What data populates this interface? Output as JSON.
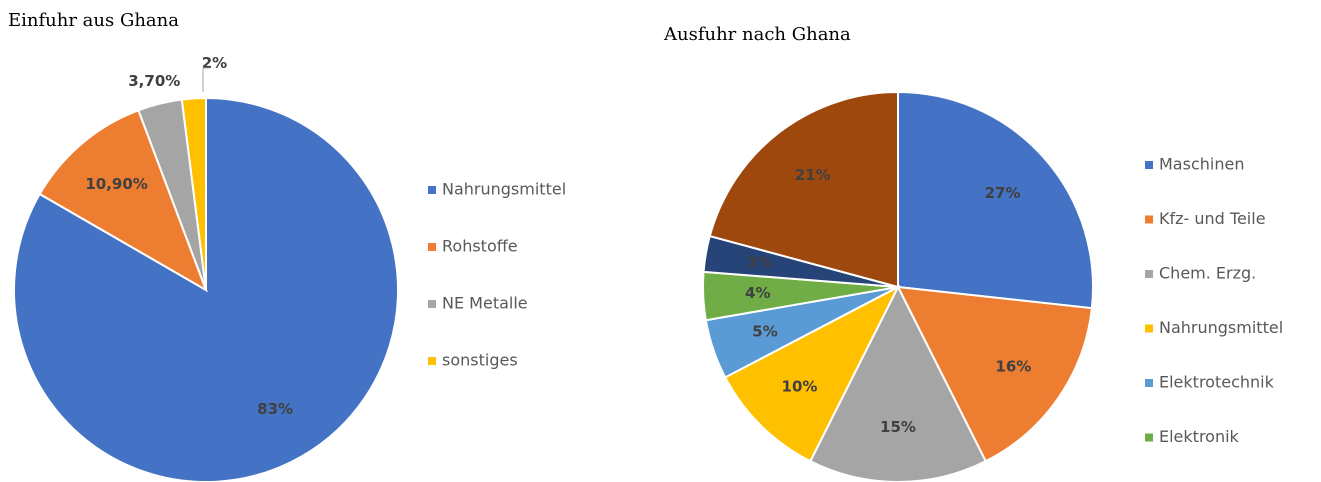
{
  "chart_data": [
    {
      "type": "pie",
      "title": "Einfuhr aus Ghana",
      "categories": [
        "Nahrungsmittel",
        "Rohstoffe",
        "NE Metalle",
        "sonstiges"
      ],
      "values": [
        83,
        10.9,
        3.7,
        2
      ],
      "value_labels": [
        "83%",
        "10,90%",
        "3,70%",
        "2%"
      ],
      "colors": [
        "#4472c4",
        "#ed7d31",
        "#a5a5a5",
        "#ffc000"
      ],
      "legend": "right"
    },
    {
      "type": "pie",
      "title": "Ausfuhr nach Ghana",
      "categories": [
        "Maschinen",
        "Kfz- und Teile",
        "Chem. Erzg.",
        "Nahrungsmittel",
        "Elektrotechnik",
        "Elektronik",
        null,
        null
      ],
      "values": [
        27,
        16,
        15,
        10,
        5,
        4,
        3,
        21
      ],
      "value_labels": [
        "27%",
        "16%",
        "15%",
        "10%",
        "5%",
        "4%",
        "3%",
        "21%"
      ],
      "colors": [
        "#4472c4",
        "#ed7d31",
        "#a5a5a5",
        "#ffc000",
        "#5b9bd5",
        "#70ad47",
        "#264478",
        "#9e480e"
      ],
      "legend": "right"
    }
  ]
}
